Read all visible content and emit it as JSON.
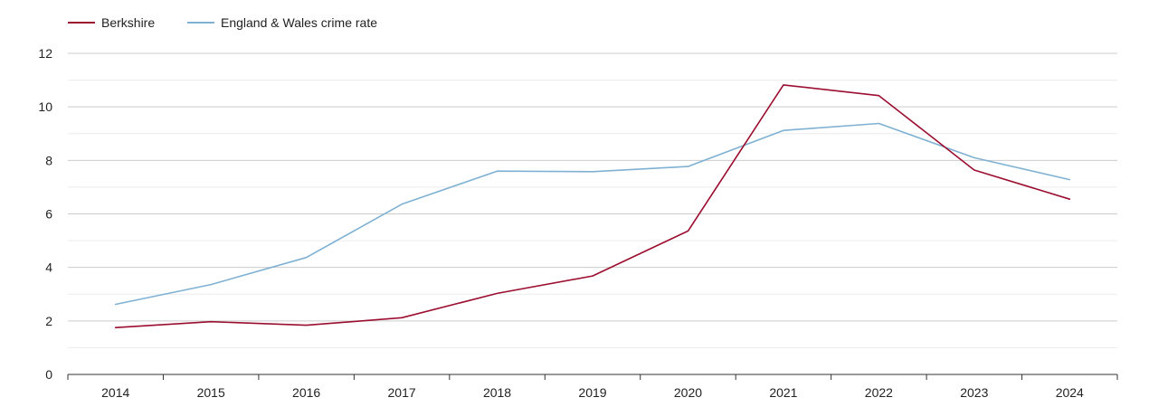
{
  "chart_data": {
    "type": "line",
    "title": "",
    "xlabel": "",
    "ylabel": "",
    "categories": [
      "2014",
      "2015",
      "2016",
      "2017",
      "2018",
      "2019",
      "2020",
      "2021",
      "2022",
      "2023",
      "2024"
    ],
    "ylim": [
      0,
      12
    ],
    "yticks": [
      0,
      2,
      4,
      6,
      8,
      10,
      12
    ],
    "grid": true,
    "legend_position": "top-left",
    "series": [
      {
        "name": "Berkshire",
        "color": "#9b0e2f",
        "values": [
          1.75,
          1.97,
          1.84,
          2.12,
          3.03,
          3.68,
          5.36,
          10.82,
          10.42,
          7.64,
          6.55
        ]
      },
      {
        "name": "England & Wales crime rate",
        "color": "#7fb1d3",
        "values": [
          2.62,
          3.36,
          4.37,
          6.36,
          7.6,
          7.58,
          7.77,
          9.12,
          9.38,
          8.1,
          7.28
        ]
      }
    ]
  }
}
